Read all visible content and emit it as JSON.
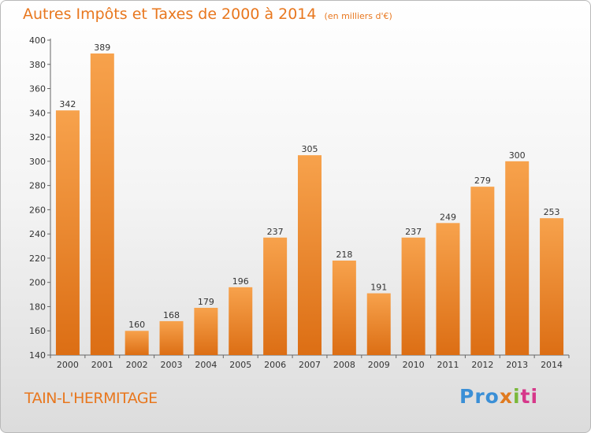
{
  "chart_data": {
    "type": "bar",
    "title": "Autres Impôts et Taxes de 2000 à 2014",
    "unit_note": "(en milliers d'€)",
    "categories": [
      "2000",
      "2001",
      "2002",
      "2003",
      "2004",
      "2005",
      "2006",
      "2007",
      "2008",
      "2009",
      "2010",
      "2011",
      "2012",
      "2013",
      "2014"
    ],
    "values": [
      342,
      389,
      160,
      168,
      179,
      196,
      237,
      305,
      218,
      191,
      237,
      249,
      279,
      300,
      253
    ],
    "ylim": [
      140,
      400
    ],
    "yticks": [
      140,
      160,
      180,
      200,
      220,
      240,
      260,
      280,
      300,
      320,
      340,
      360,
      380,
      400
    ],
    "grid": false,
    "bar_color": "#f0902e"
  },
  "footer": {
    "commune": "TAIN-L'HERMITAGE",
    "logo": {
      "p1": "Pro",
      "p2": "x",
      "p3": "i",
      "p4": "ti"
    }
  }
}
